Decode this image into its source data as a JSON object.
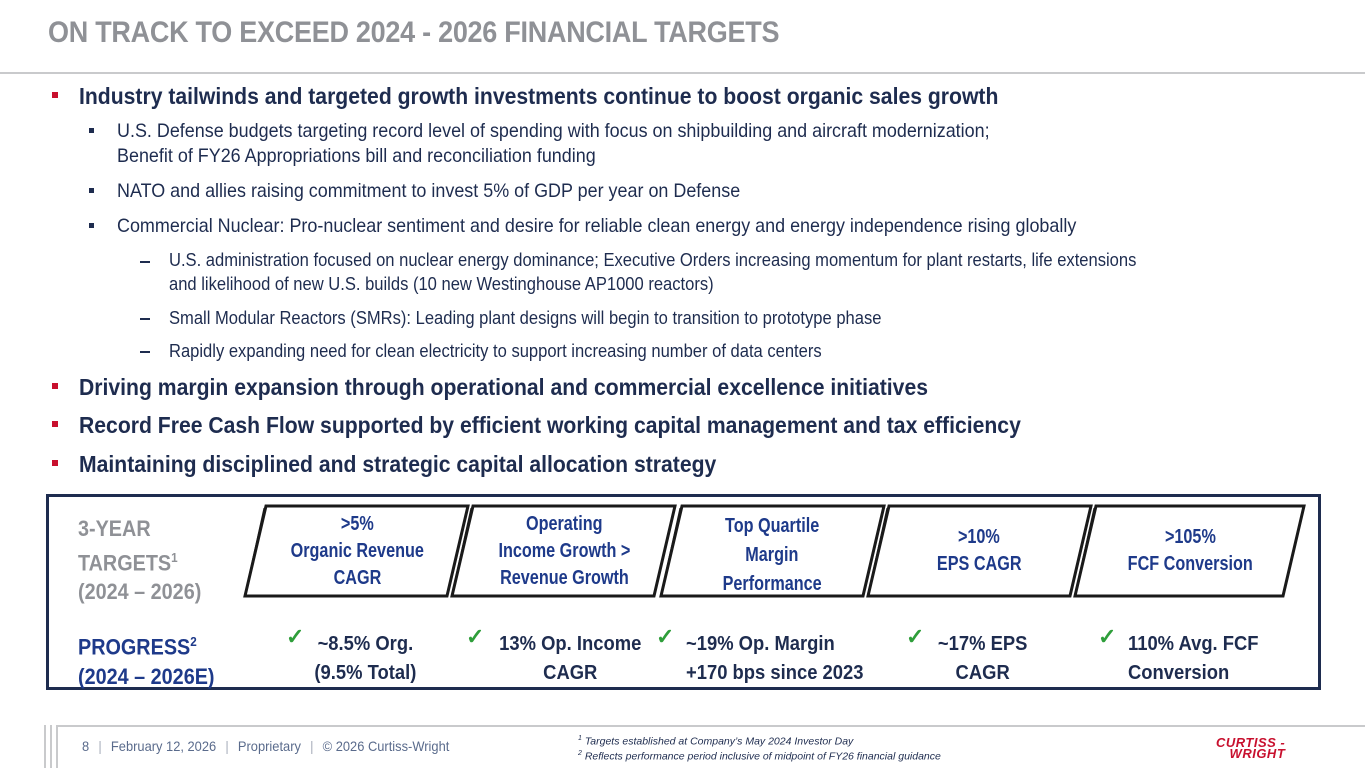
{
  "title": "ON TRACK TO EXCEED 2024 - 2026 FINANCIAL TARGETS",
  "bullets": {
    "b1": "Industry tailwinds and targeted growth investments continue to boost organic sales growth",
    "b1_1a": "U.S. Defense budgets targeting record level of spending with focus on shipbuilding and aircraft modernization;",
    "b1_1b": "Benefit of FY26 Appropriations bill and reconciliation funding",
    "b1_2": "NATO and allies raising commitment to invest 5% of GDP per year on Defense",
    "b1_3": "Commercial Nuclear: Pro-nuclear sentiment and desire for reliable clean energy and energy independence rising globally",
    "b1_3_1a": "U.S. administration focused on nuclear energy dominance; Executive Orders increasing momentum for plant restarts, life extensions",
    "b1_3_1b": "and likelihood of new U.S. builds (10 new Westinghouse AP1000 reactors)",
    "b1_3_2": "Small Modular Reactors (SMRs): Leading plant designs will begin to transition to prototype phase",
    "b1_3_3": "Rapidly expanding need for clean electricity to support increasing number of data centers",
    "b2": "Driving margin expansion through operational and commercial excellence initiatives",
    "b3": "Record Free Cash Flow supported by efficient working capital management and tax efficiency",
    "b4": "Maintaining disciplined and strategic capital allocation strategy"
  },
  "targets": {
    "label_line1": "3-YEAR",
    "label_line2": "TARGETS",
    "label_sup": "1",
    "label_line3": "(2024 – 2026)",
    "boxes": [
      {
        "l1": ">5%",
        "l2": "Organic Revenue",
        "l3": "CAGR"
      },
      {
        "l1": "Operating",
        "l2": "Income Growth >",
        "l3": "Revenue Growth"
      },
      {
        "l1": "Top Quartile",
        "l2": "Margin",
        "l3": "Performance"
      },
      {
        "l1": ">10%",
        "l2": "EPS CAGR"
      },
      {
        "l1": ">105%",
        "l2": "FCF Conversion"
      }
    ]
  },
  "progress": {
    "label_line1": "PROGRESS",
    "label_sup": "2",
    "label_line2": "(2024 – 2026E)",
    "check": "✓",
    "items": [
      {
        "l1": "~8.5% Org.",
        "l2": "(9.5% Total)"
      },
      {
        "l1": "13% Op. Income",
        "l2": "CAGR"
      },
      {
        "l1": "~19% Op. Margin",
        "l2": "+170 bps since 2023"
      },
      {
        "l1": "~17% EPS",
        "l2": "CAGR"
      },
      {
        "l1": "110% Avg. FCF",
        "l2": "Conversion"
      }
    ]
  },
  "footer": {
    "page": "8",
    "date": "February 12, 2026",
    "class": "Proprietary",
    "copyright": "© 2026 Curtiss-Wright",
    "fn1_num": "1",
    "fn1": " Targets established at Company’s May 2024 Investor Day",
    "fn2_num": "2",
    "fn2": " Reflects performance period inclusive of midpoint of FY26 financial guidance",
    "logo_l1": "CURTISS -",
    "logo_l2": "WRIGHT"
  },
  "colors": {
    "navy": "#1e2c4f",
    "blue": "#1e3a8a",
    "red": "#c8102e",
    "gray": "#8f9196",
    "green": "#2e9e3a"
  }
}
